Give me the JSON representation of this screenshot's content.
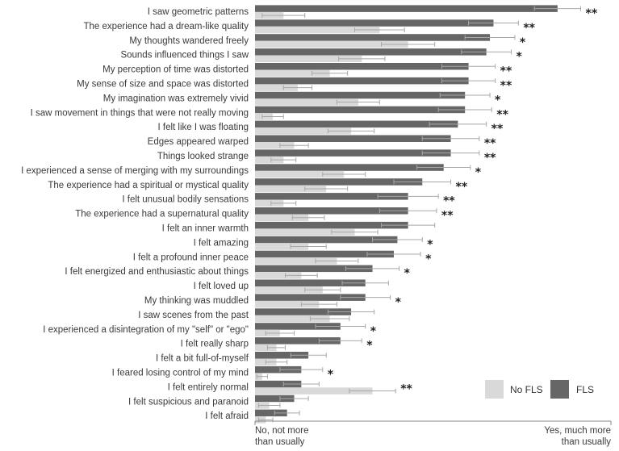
{
  "chart_data": {
    "type": "bar",
    "orientation": "horizontal",
    "x_scale": [
      0,
      100
    ],
    "x_tick_labels": {
      "min": [
        "No, not more",
        "than usually"
      ],
      "max": [
        "Yes, much more",
        "than usually"
      ]
    },
    "legend": [
      {
        "name": "No FLS",
        "color": "#d9d9d9"
      },
      {
        "name": "FLS",
        "color": "#666666"
      }
    ],
    "error_bar_color": "#a8a8a8",
    "items": [
      {
        "label": "I saw geometric patterns",
        "fls": 85,
        "fls_err": 6.5,
        "nofls": 8,
        "nofls_err": 6,
        "sig": "**"
      },
      {
        "label": "The experience had a dream-like quality",
        "fls": 67,
        "fls_err": 7,
        "nofls": 35,
        "nofls_err": 7,
        "sig": "**"
      },
      {
        "label": "My thoughts wandered freely",
        "fls": 66,
        "fls_err": 7,
        "nofls": 43,
        "nofls_err": 7.5,
        "sig": "*"
      },
      {
        "label": "Sounds influenced things I saw",
        "fls": 65,
        "fls_err": 7,
        "nofls": 30,
        "nofls_err": 6.5,
        "sig": "*"
      },
      {
        "label": "My perception of time was distorted",
        "fls": 60,
        "fls_err": 7.5,
        "nofls": 21,
        "nofls_err": 5,
        "sig": "**"
      },
      {
        "label": "My sense of size and space was distorted",
        "fls": 60,
        "fls_err": 7.5,
        "nofls": 12,
        "nofls_err": 4,
        "sig": "**"
      },
      {
        "label": "My imagination was extremely vivid",
        "fls": 59,
        "fls_err": 7,
        "nofls": 29,
        "nofls_err": 6,
        "sig": "*"
      },
      {
        "label": "I saw movement in things that were not really moving",
        "fls": 59,
        "fls_err": 7.5,
        "nofls": 5,
        "nofls_err": 3,
        "sig": "**"
      },
      {
        "label": "I felt like I was floating",
        "fls": 57,
        "fls_err": 8,
        "nofls": 27,
        "nofls_err": 6.5,
        "sig": "**"
      },
      {
        "label": "Edges appeared warped",
        "fls": 55,
        "fls_err": 8,
        "nofls": 11,
        "nofls_err": 4,
        "sig": "**"
      },
      {
        "label": "Things looked strange",
        "fls": 55,
        "fls_err": 8,
        "nofls": 8,
        "nofls_err": 3.5,
        "sig": "**"
      },
      {
        "label": "I experienced a sense of merging with my surroundings",
        "fls": 53,
        "fls_err": 7.5,
        "nofls": 25,
        "nofls_err": 6,
        "sig": "*"
      },
      {
        "label": "The experience had a spiritual or mystical quality",
        "fls": 47,
        "fls_err": 8,
        "nofls": 20,
        "nofls_err": 6,
        "sig": "**"
      },
      {
        "label": "I felt unusual bodily sensations",
        "fls": 43,
        "fls_err": 8.5,
        "nofls": 8,
        "nofls_err": 3.5,
        "sig": "**"
      },
      {
        "label": "The experience had a supernatural quality",
        "fls": 43,
        "fls_err": 8,
        "nofls": 15,
        "nofls_err": 4.5,
        "sig": "**"
      },
      {
        "label": "I felt an inner warmth",
        "fls": 43,
        "fls_err": 7.5,
        "nofls": 28,
        "nofls_err": 6.5,
        "sig": ""
      },
      {
        "label": "I felt amazing",
        "fls": 40,
        "fls_err": 7,
        "nofls": 15,
        "nofls_err": 5,
        "sig": "*"
      },
      {
        "label": "I felt a profound inner peace",
        "fls": 39,
        "fls_err": 7.5,
        "nofls": 23,
        "nofls_err": 6,
        "sig": "*"
      },
      {
        "label": "I felt energized and enthusiastic about things",
        "fls": 33,
        "fls_err": 7.5,
        "nofls": 13,
        "nofls_err": 4.5,
        "sig": "*"
      },
      {
        "label": "I felt loved up",
        "fls": 31,
        "fls_err": 6.5,
        "nofls": 19,
        "nofls_err": 5,
        "sig": ""
      },
      {
        "label": "My thinking was muddled",
        "fls": 31,
        "fls_err": 7,
        "nofls": 18,
        "nofls_err": 5,
        "sig": "*"
      },
      {
        "label": "I saw scenes from the past",
        "fls": 27,
        "fls_err": 6.5,
        "nofls": 21,
        "nofls_err": 5.5,
        "sig": ""
      },
      {
        "label": "I experienced a disintegration of my \"self\" or \"ego\"",
        "fls": 24,
        "fls_err": 7,
        "nofls": 7,
        "nofls_err": 4,
        "sig": "*"
      },
      {
        "label": "I felt really sharp",
        "fls": 24,
        "fls_err": 6,
        "nofls": 6,
        "nofls_err": 2.5,
        "sig": "*"
      },
      {
        "label": "I felt a bit full-of-myself",
        "fls": 15,
        "fls_err": 5,
        "nofls": 6,
        "nofls_err": 3,
        "sig": ""
      },
      {
        "label": "I feared losing control of my mind",
        "fls": 13,
        "fls_err": 6,
        "nofls": 2,
        "nofls_err": 1.5,
        "sig": "*"
      },
      {
        "label": "I felt entirely normal",
        "fls": 13,
        "fls_err": 5,
        "nofls": 33,
        "nofls_err": 6.5,
        "sig": "**"
      },
      {
        "label": "I felt suspicious and paranoid",
        "fls": 11,
        "fls_err": 4,
        "nofls": 4,
        "nofls_err": 3,
        "sig": ""
      },
      {
        "label": "I felt afraid",
        "fls": 9,
        "fls_err": 3.5,
        "nofls": 3,
        "nofls_err": 2,
        "sig": ""
      }
    ]
  }
}
